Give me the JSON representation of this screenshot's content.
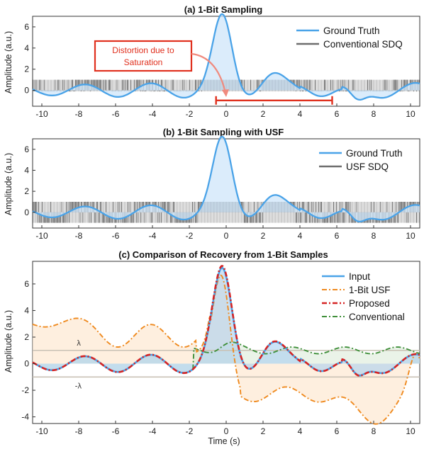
{
  "chart_data": [
    {
      "id": "a",
      "type": "line",
      "title": "(a) 1-Bit Sampling",
      "xlabel": "",
      "ylabel": "Amplitude (a.u.)",
      "xlim": [
        -10.5,
        10.5
      ],
      "ylim": [
        -1.5,
        7
      ],
      "xticks": [
        -10,
        -8,
        -6,
        -4,
        -2,
        0,
        2,
        4,
        6,
        8,
        10
      ],
      "yticks": [
        0,
        2,
        4,
        6
      ],
      "legend_position": "top-right",
      "series": [
        {
          "name": "Ground Truth",
          "color": "#4aa3e8",
          "fill": "#cfe6fa"
        },
        {
          "name": "Conventional SDQ",
          "color": "#6e6e6e",
          "levels": [
            -0.1,
            1.0
          ]
        }
      ],
      "annotation": {
        "text_lines": [
          "Distortion due to",
          "Saturation"
        ],
        "color": "#e0301e",
        "interval": [
          -0.55,
          5.75
        ],
        "interval_y": -0.95,
        "arrow_target": [
          0.1,
          -0.8
        ]
      }
    },
    {
      "id": "b",
      "type": "line",
      "title": "(b) 1-Bit Sampling with USF",
      "xlabel": "",
      "ylabel": "Amplitude (a.u.)",
      "xlim": [
        -10.5,
        10.5
      ],
      "ylim": [
        -1.5,
        7
      ],
      "xticks": [
        -10,
        -8,
        -6,
        -4,
        -2,
        0,
        2,
        4,
        6,
        8,
        10
      ],
      "yticks": [
        0,
        2,
        4,
        6
      ],
      "legend_position": "top-right",
      "series": [
        {
          "name": "Ground Truth",
          "color": "#4aa3e8",
          "fill": "#cfe6fa"
        },
        {
          "name": "USF SDQ",
          "color": "#6e6e6e",
          "levels": [
            -1.0,
            1.0
          ]
        }
      ]
    },
    {
      "id": "c",
      "type": "line",
      "title": "(c) Comparison of Recovery from 1-Bit Samples",
      "xlabel": "Time (s)",
      "ylabel": "Amplitude (a.u.)",
      "xlim": [
        -10.5,
        10.5
      ],
      "ylim": [
        -4.5,
        7.7
      ],
      "xticks": [
        -10,
        -8,
        -6,
        -4,
        -2,
        0,
        2,
        4,
        6,
        8,
        10
      ],
      "yticks": [
        -4,
        -2,
        0,
        2,
        4,
        6
      ],
      "legend_position": "top-right",
      "threshold_labels": {
        "upper": "λ",
        "lower": "-λ",
        "level": 1.0
      },
      "series": [
        {
          "name": "Input",
          "color": "#4aa3e8",
          "style": "solid"
        },
        {
          "name": "1-Bit USF",
          "color": "#ef8a1f",
          "style": "dashdot"
        },
        {
          "name": "Proposed",
          "color": "#d62424",
          "style": "dashdot"
        },
        {
          "name": "Conventional",
          "color": "#3f8f3a",
          "style": "dashdot"
        }
      ],
      "usf_peak": 7.6,
      "usf_trough": -4.5,
      "conventional_level": 1.0
    }
  ]
}
